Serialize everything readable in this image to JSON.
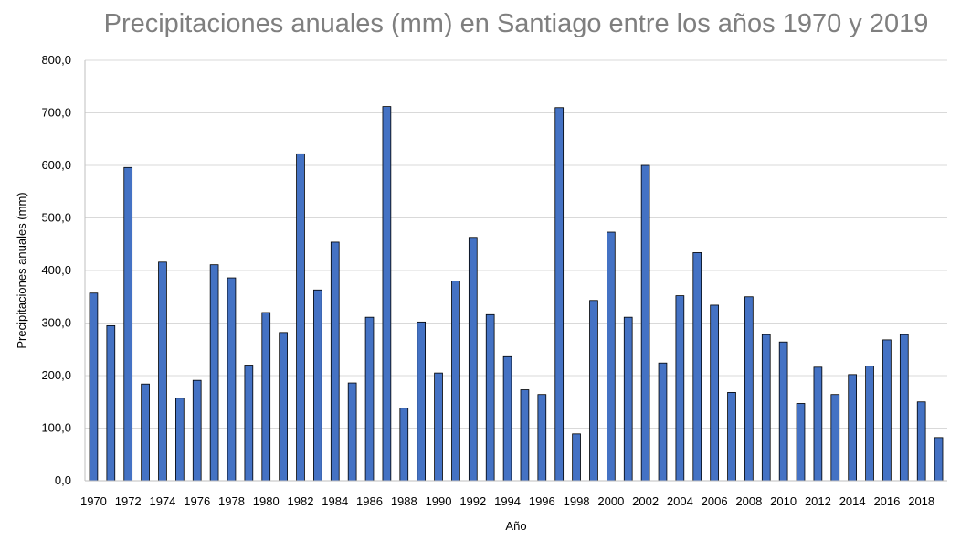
{
  "chart_data": {
    "type": "bar",
    "title": "Precipitaciones anuales (mm) en Santiago entre los años 1970 y 2019",
    "xlabel": "Año",
    "ylabel": "Precipitaciones anuales (mm)",
    "ylim": [
      0,
      800
    ],
    "yticks": [
      "0,0",
      "100,0",
      "200,0",
      "300,0",
      "400,0",
      "500,0",
      "600,0",
      "700,0",
      "800,0"
    ],
    "grid": true,
    "bar_color": "#4472c4",
    "categories": [
      "1970",
      "1971",
      "1972",
      "1973",
      "1974",
      "1975",
      "1976",
      "1977",
      "1978",
      "1979",
      "1980",
      "1981",
      "1982",
      "1983",
      "1984",
      "1985",
      "1986",
      "1987",
      "1988",
      "1989",
      "1990",
      "1991",
      "1992",
      "1993",
      "1994",
      "1995",
      "1996",
      "1997",
      "1998",
      "1999",
      "2000",
      "2001",
      "2002",
      "2003",
      "2004",
      "2005",
      "2006",
      "2007",
      "2008",
      "2009",
      "2010",
      "2011",
      "2012",
      "2013",
      "2014",
      "2015",
      "2016",
      "2017",
      "2018",
      "2019"
    ],
    "xtick_labels_shown": [
      "1970",
      "1972",
      "1974",
      "1976",
      "1978",
      "1980",
      "1982",
      "1984",
      "1986",
      "1988",
      "1990",
      "1992",
      "1994",
      "1996",
      "1998",
      "2000",
      "2002",
      "2004",
      "2006",
      "2008",
      "2010",
      "2012",
      "2014",
      "2016",
      "2018"
    ],
    "values": [
      357,
      295,
      596,
      184,
      416,
      157,
      191,
      411,
      386,
      220,
      320,
      282,
      622,
      363,
      454,
      186,
      311,
      712,
      138,
      302,
      205,
      380,
      463,
      316,
      236,
      173,
      164,
      710,
      89,
      343,
      473,
      311,
      600,
      224,
      352,
      434,
      334,
      168,
      350,
      278,
      264,
      147,
      216,
      164,
      202,
      218,
      268,
      278,
      150,
      82
    ]
  }
}
